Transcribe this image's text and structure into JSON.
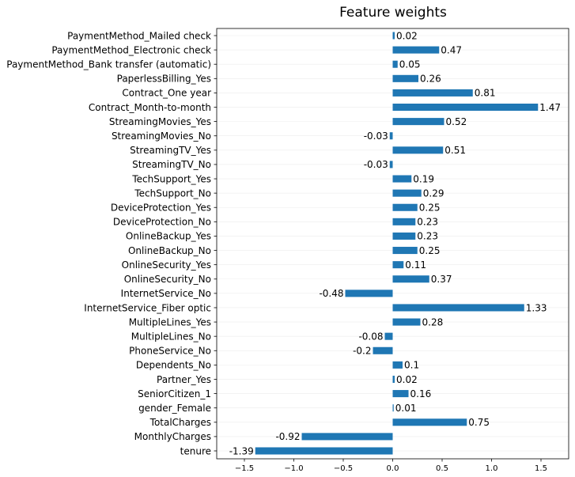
{
  "chart_data": {
    "type": "bar",
    "orientation": "horizontal",
    "title": "Feature weights",
    "xlabel": "",
    "ylabel": "",
    "xlim": [
      -1.78,
      1.78
    ],
    "xticks": [
      -1.5,
      -1.0,
      -0.5,
      0.0,
      0.5,
      1.0,
      1.5
    ],
    "xtick_labels": [
      "−1.5",
      "−1.0",
      "−0.5",
      "0.0",
      "0.5",
      "1.0",
      "1.5"
    ],
    "grid": "horizontal faint",
    "bar_color": "#1f77b4",
    "categories": [
      "PaymentMethod_Mailed check",
      "PaymentMethod_Electronic check",
      "PaymentMethod_Bank transfer (automatic)",
      "PaperlessBilling_Yes",
      "Contract_One year",
      "Contract_Month-to-month",
      "StreamingMovies_Yes",
      "StreamingMovies_No",
      "StreamingTV_Yes",
      "StreamingTV_No",
      "TechSupport_Yes",
      "TechSupport_No",
      "DeviceProtection_Yes",
      "DeviceProtection_No",
      "OnlineBackup_Yes",
      "OnlineBackup_No",
      "OnlineSecurity_Yes",
      "OnlineSecurity_No",
      "InternetService_No",
      "InternetService_Fiber optic",
      "MultipleLines_Yes",
      "MultipleLines_No",
      "PhoneService_No",
      "Dependents_No",
      "Partner_Yes",
      "SeniorCitizen_1",
      "gender_Female",
      "TotalCharges",
      "MonthlyCharges",
      "tenure"
    ],
    "values": [
      0.02,
      0.47,
      0.05,
      0.26,
      0.81,
      1.47,
      0.52,
      -0.03,
      0.51,
      -0.03,
      0.19,
      0.29,
      0.25,
      0.23,
      0.23,
      0.25,
      0.11,
      0.37,
      -0.48,
      1.33,
      0.28,
      -0.08,
      -0.2,
      0.1,
      0.02,
      0.16,
      0.01,
      0.75,
      -0.92,
      -1.39
    ],
    "value_labels": [
      "0.02",
      "0.47",
      "0.05",
      "0.26",
      "0.81",
      "1.47",
      "0.52",
      "-0.03",
      "0.51",
      "-0.03",
      "0.19",
      "0.29",
      "0.25",
      "0.23",
      "0.23",
      "0.25",
      "0.11",
      "0.37",
      "-0.48",
      "1.33",
      "0.28",
      "-0.08",
      "-0.2",
      "0.1",
      "0.02",
      "0.16",
      "0.01",
      "0.75",
      "-0.92",
      "-1.39"
    ]
  }
}
